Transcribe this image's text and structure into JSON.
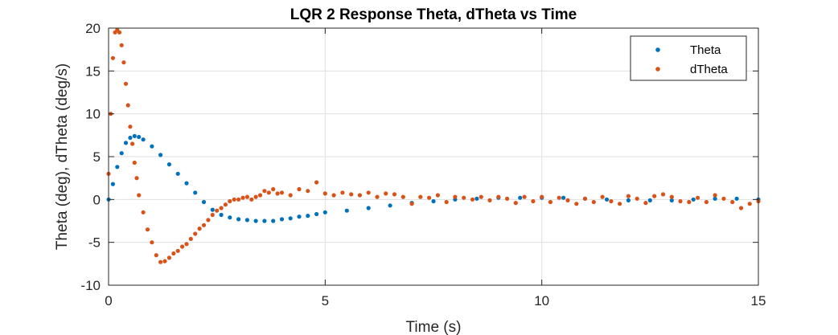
{
  "chart_data": {
    "type": "scatter",
    "title": "LQR 2 Response  Theta, dTheta vs Time",
    "xlabel": "Time (s)",
    "ylabel": "Theta (deg), dTheta (deg/s)",
    "xlim": [
      0,
      15
    ],
    "ylim": [
      -10,
      20
    ],
    "xticks": [
      "0",
      "5",
      "10",
      "15"
    ],
    "yticks": [
      "-10",
      "-5",
      "0",
      "5",
      "10",
      "15",
      "20"
    ],
    "grid": true,
    "legend_position": "top-right",
    "series": [
      {
        "name": "Theta",
        "color": "#0072BD",
        "x": [
          0,
          0.1,
          0.2,
          0.3,
          0.4,
          0.5,
          0.6,
          0.7,
          0.8,
          1.0,
          1.2,
          1.4,
          1.6,
          1.8,
          2.0,
          2.2,
          2.4,
          2.6,
          2.8,
          3.0,
          3.2,
          3.4,
          3.6,
          3.8,
          4.0,
          4.2,
          4.4,
          4.6,
          4.8,
          5.0,
          5.5,
          6.0,
          6.5,
          7.0,
          7.5,
          8.0,
          8.5,
          9.0,
          9.5,
          10.0,
          10.5,
          11.0,
          11.5,
          12.0,
          12.5,
          13.0,
          13.5,
          14.0,
          14.5,
          15.0
        ],
        "y": [
          0,
          1.8,
          3.8,
          5.4,
          6.6,
          7.2,
          7.4,
          7.3,
          7.0,
          6.2,
          5.2,
          4.1,
          3.0,
          1.9,
          0.8,
          -0.3,
          -1.2,
          -1.8,
          -2.1,
          -2.3,
          -2.4,
          -2.5,
          -2.5,
          -2.5,
          -2.3,
          -2.2,
          -2.0,
          -1.9,
          -1.7,
          -1.5,
          -1.3,
          -1.0,
          -0.7,
          -0.4,
          -0.2,
          0.0,
          0.1,
          0.2,
          0.2,
          0.2,
          0.2,
          0.1,
          0.0,
          -0.1,
          -0.1,
          -0.1,
          0.0,
          0.1,
          0.1,
          0.0
        ]
      },
      {
        "name": "dTheta",
        "color": "#D95319",
        "x": [
          0,
          0.05,
          0.1,
          0.15,
          0.2,
          0.25,
          0.3,
          0.35,
          0.4,
          0.45,
          0.5,
          0.55,
          0.6,
          0.65,
          0.7,
          0.8,
          0.9,
          1.0,
          1.1,
          1.2,
          1.3,
          1.4,
          1.5,
          1.6,
          1.7,
          1.8,
          1.9,
          2.0,
          2.1,
          2.2,
          2.3,
          2.4,
          2.5,
          2.6,
          2.7,
          2.8,
          2.9,
          3.0,
          3.1,
          3.2,
          3.3,
          3.4,
          3.5,
          3.6,
          3.7,
          3.8,
          3.9,
          4.0,
          4.2,
          4.4,
          4.6,
          4.8,
          5.0,
          5.2,
          5.4,
          5.6,
          5.8,
          6.0,
          6.2,
          6.4,
          6.6,
          6.8,
          7.0,
          7.2,
          7.4,
          7.6,
          7.8,
          8.0,
          8.2,
          8.4,
          8.6,
          8.8,
          9.0,
          9.2,
          9.4,
          9.6,
          9.8,
          10.0,
          10.2,
          10.4,
          10.6,
          10.8,
          11.0,
          11.2,
          11.4,
          11.6,
          11.8,
          12.0,
          12.2,
          12.4,
          12.6,
          12.8,
          13.0,
          13.2,
          13.4,
          13.6,
          13.8,
          14.0,
          14.2,
          14.4,
          14.6,
          14.8,
          15.0
        ],
        "y": [
          3.0,
          10.0,
          16.5,
          19.5,
          19.8,
          19.5,
          18.0,
          16.0,
          13.5,
          11.0,
          8.5,
          6.5,
          4.3,
          2.5,
          0.5,
          -1.5,
          -3.5,
          -5.0,
          -6.5,
          -7.3,
          -7.2,
          -6.8,
          -6.3,
          -6.0,
          -5.5,
          -5.2,
          -4.6,
          -4.0,
          -3.4,
          -3.0,
          -2.4,
          -1.8,
          -1.3,
          -1.0,
          -0.6,
          -0.2,
          0.0,
          0.0,
          0.2,
          0.3,
          0.0,
          0.3,
          0.5,
          1.0,
          0.8,
          1.2,
          0.7,
          0.8,
          0.5,
          1.2,
          1.0,
          2.0,
          0.7,
          0.5,
          0.8,
          0.6,
          0.5,
          0.8,
          0.3,
          0.7,
          0.6,
          0.3,
          -0.5,
          0.3,
          0.2,
          0.5,
          -0.3,
          0.3,
          0.2,
          0.0,
          0.3,
          -0.1,
          0.3,
          0.1,
          -0.4,
          0.3,
          -0.2,
          0.3,
          -0.3,
          0.2,
          -0.1,
          -0.5,
          0.1,
          -0.3,
          0.3,
          -0.2,
          -0.5,
          0.4,
          0.1,
          -0.4,
          0.4,
          0.6,
          0.3,
          -0.2,
          -0.3,
          0.2,
          -0.3,
          0.5,
          0.1,
          -0.3,
          -1.0,
          -0.5,
          -0.2
        ]
      }
    ]
  }
}
